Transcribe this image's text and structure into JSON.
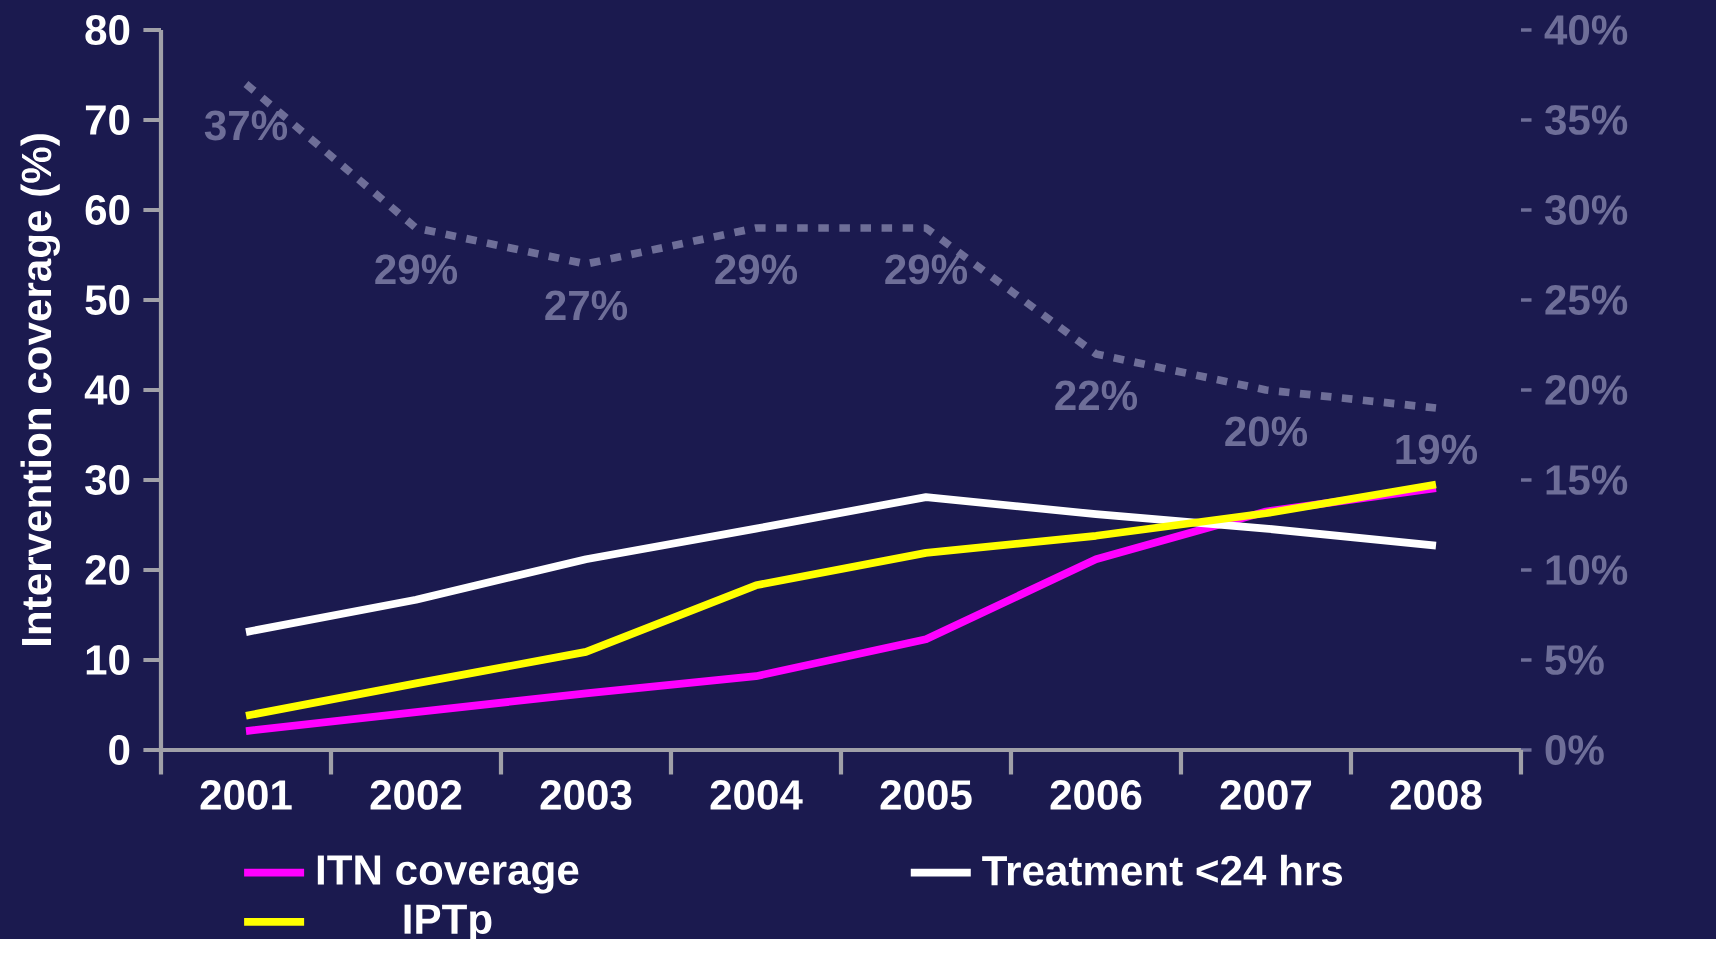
{
  "chart_data": {
    "type": "line",
    "ylabel": "Intervention coverage (%)",
    "categories": [
      "2001",
      "2002",
      "2003",
      "2004",
      "2005",
      "2006",
      "2007",
      "2008"
    ],
    "ylim": [
      0,
      80
    ],
    "yticks": [
      0,
      10,
      20,
      30,
      40,
      50,
      60,
      70,
      80
    ],
    "y2lim": [
      0,
      40
    ],
    "y2ticks": [
      {
        "value": 0,
        "label": "0%"
      },
      {
        "value": 5,
        "label": "5%"
      },
      {
        "value": 10,
        "label": "10%"
      },
      {
        "value": 15,
        "label": "15%"
      },
      {
        "value": 20,
        "label": "20%"
      },
      {
        "value": 25,
        "label": "25%"
      },
      {
        "value": 30,
        "label": "30%"
      },
      {
        "value": 35,
        "label": "35%"
      },
      {
        "value": 40,
        "label": "40%"
      }
    ],
    "legend": "bottom",
    "series": [
      {
        "name": "ITN coverage",
        "color": "#ff00ff",
        "values": [
          2.1,
          4.2,
          6.3,
          8.2,
          12.3,
          21.2,
          26.5,
          29.1
        ]
      },
      {
        "name": "Treatment <24 hrs",
        "color": "#ffffff",
        "values": [
          13.1,
          16.7,
          21.2,
          24.6,
          28.1,
          26.2,
          24.6,
          22.7
        ]
      },
      {
        "name": "IPTp",
        "color": "#ffff00",
        "values": [
          3.8,
          7.4,
          10.9,
          18.3,
          21.9,
          23.8,
          26.3,
          29.5
        ]
      },
      {
        "color": "#6e6e98",
        "axis": "y2",
        "line_style": "dashed",
        "values": [
          37,
          29,
          27,
          29,
          29,
          22,
          20,
          19
        ],
        "value_labels": [
          "37%",
          "29%",
          "27%",
          "29%",
          "29%",
          "22%",
          "20%",
          "19%"
        ]
      }
    ]
  }
}
